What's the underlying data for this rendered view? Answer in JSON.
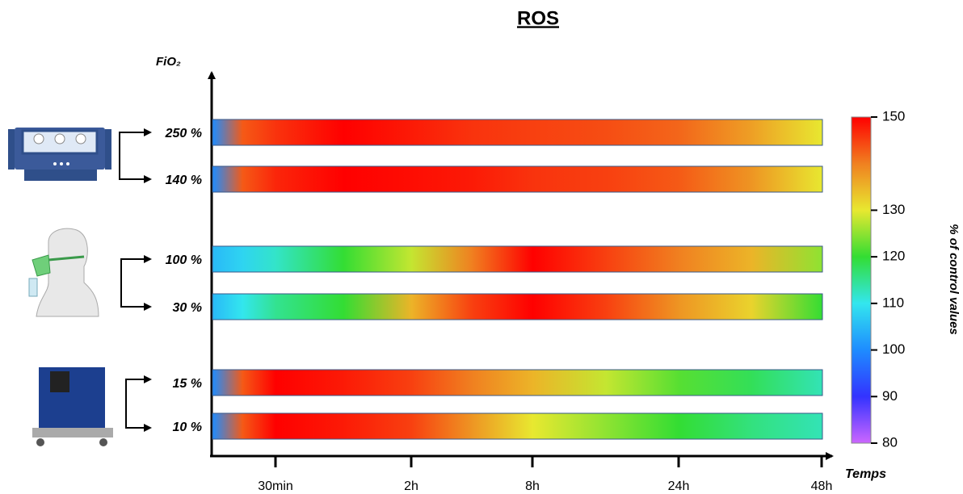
{
  "chart_data": {
    "type": "heatstrip",
    "title": "ROS",
    "y_label": "FiO₂",
    "x_label": "Temps",
    "categories": [
      null,
      null,
      "30min",
      null,
      "2h",
      null,
      "8h",
      null,
      "24h",
      null,
      "48h"
    ],
    "series": [
      {
        "name": "250 %",
        "values": [
          100,
          143,
          146,
          150,
          148,
          146,
          145,
          144,
          142,
          137,
          130
        ]
      },
      {
        "name": "140 %",
        "values": [
          100,
          143,
          147,
          150,
          149,
          148,
          146,
          145,
          143,
          138,
          130
        ]
      },
      {
        "name": "100 %",
        "values": [
          105,
          108,
          112,
          120,
          128,
          140,
          150,
          145,
          140,
          135,
          125
        ]
      },
      {
        "name": "30 %",
        "values": [
          105,
          110,
          115,
          120,
          135,
          145,
          150,
          145,
          138,
          132,
          120
        ]
      },
      {
        "name": "15 %",
        "values": [
          100,
          143,
          150,
          148,
          145,
          140,
          135,
          128,
          122,
          118,
          113
        ]
      },
      {
        "name": "10 %",
        "values": [
          100,
          143,
          150,
          148,
          145,
          138,
          130,
          125,
          120,
          116,
          113
        ]
      }
    ],
    "colorbar_label": "% of control values",
    "clim": [
      80,
      150
    ],
    "cticks": [
      80,
      90,
      100,
      110,
      120,
      130,
      150
    ],
    "colorscale": [
      [
        80,
        "#cc66ff"
      ],
      [
        90,
        "#3333ff"
      ],
      [
        100,
        "#1e8cff"
      ],
      [
        110,
        "#33e6ee"
      ],
      [
        120,
        "#33dd33"
      ],
      [
        130,
        "#e8e830"
      ],
      [
        140,
        "#f08020"
      ],
      [
        150,
        "#ff0000"
      ]
    ]
  }
}
